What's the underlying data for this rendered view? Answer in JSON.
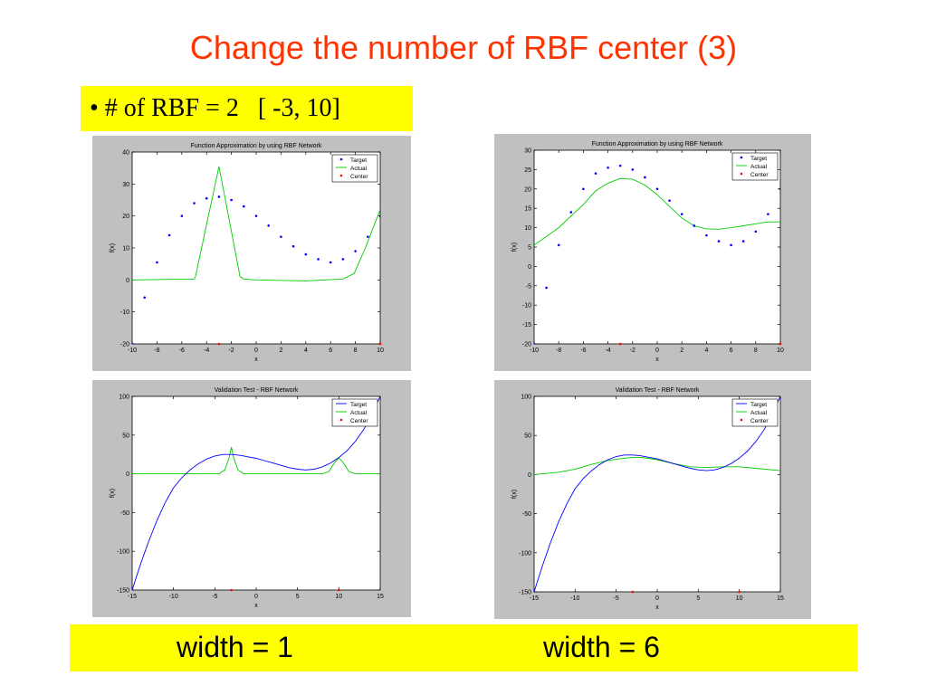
{
  "slide": {
    "title": "Change the number of RBF center (3)",
    "bullet": "• # of RBF = 2   [ -3, 10]",
    "width_left": "width = 1",
    "width_right": "width = 6"
  },
  "colors": {
    "target": "#0000ff",
    "actual": "#00cc00",
    "center": "#ff0000",
    "title": "#ff3300",
    "highlight": "#ffff00"
  },
  "chart_data": [
    {
      "type": "scatter",
      "title": "Function Approximation by using RBF Network",
      "xlabel": "x",
      "ylabel": "f(x)",
      "xlim": [
        -10,
        10
      ],
      "ylim": [
        -20,
        40
      ],
      "xticks": [
        -10,
        -8,
        -6,
        -4,
        -2,
        0,
        2,
        4,
        6,
        8,
        10
      ],
      "yticks": [
        -20,
        -10,
        0,
        10,
        20,
        30,
        40
      ],
      "legend_position": "top-right",
      "legend": [
        "Target",
        "Actual",
        "Center"
      ],
      "target_style": "dots",
      "actual_style": "line",
      "target": {
        "x": [
          -10,
          -9,
          -8,
          -7,
          -6,
          -5,
          -4,
          -3,
          -2,
          -1,
          0,
          1,
          2,
          3,
          4,
          5,
          6,
          7,
          8,
          9,
          10
        ],
        "y": [
          -20,
          -5.5,
          5.5,
          14,
          20,
          24,
          25.5,
          26,
          25,
          23,
          20,
          17,
          13.5,
          10.5,
          8,
          6.5,
          5.5,
          6.5,
          9,
          13.5,
          20
        ]
      },
      "actual": {
        "x": [
          -10,
          -5,
          -4.9,
          -3,
          -1.3,
          -1,
          0,
          4,
          7,
          7.9,
          8.8,
          10
        ],
        "y": [
          0,
          0.3,
          1,
          35.5,
          1,
          0.3,
          0,
          -0.3,
          0.3,
          2,
          10,
          22
        ]
      },
      "centers": {
        "x": [
          -3,
          10
        ],
        "y": [
          -20,
          -20
        ]
      }
    },
    {
      "type": "scatter",
      "title": "Function Approximation by using RBF Network",
      "xlabel": "x",
      "ylabel": "f(x)",
      "xlim": [
        -10,
        10
      ],
      "ylim": [
        -20,
        30
      ],
      "xticks": [
        -10,
        -8,
        -6,
        -4,
        -2,
        0,
        2,
        4,
        6,
        8,
        10
      ],
      "yticks": [
        -20,
        -15,
        -10,
        -5,
        0,
        5,
        10,
        15,
        20,
        25,
        30
      ],
      "legend_position": "top-right",
      "legend": [
        "Target",
        "Actual",
        "Center"
      ],
      "target_style": "dots",
      "actual_style": "line",
      "target": {
        "x": [
          -10,
          -9,
          -8,
          -7,
          -6,
          -5,
          -4,
          -3,
          -2,
          -1,
          0,
          1,
          2,
          3,
          4,
          5,
          6,
          7,
          8,
          9,
          10
        ],
        "y": [
          -20,
          -5.5,
          5.5,
          14,
          20,
          24,
          25.5,
          26,
          25,
          23,
          20,
          17,
          13.5,
          10.5,
          8,
          6.5,
          5.5,
          6.5,
          9,
          13.5,
          20
        ]
      },
      "actual": {
        "x": [
          -10,
          -8,
          -6,
          -5,
          -4,
          -3,
          -2,
          -1,
          0,
          1,
          2,
          3,
          4,
          5,
          6,
          7,
          8,
          9,
          10
        ],
        "y": [
          5.5,
          10,
          16,
          19.5,
          21.5,
          22.7,
          22.5,
          21,
          18.5,
          15.5,
          12.5,
          10.5,
          9.7,
          9.6,
          10,
          10.5,
          11,
          11.5,
          11.5
        ]
      },
      "centers": {
        "x": [
          -3,
          10
        ],
        "y": [
          -20,
          -20
        ]
      }
    },
    {
      "type": "line",
      "title": "Validation Test - RBF Network",
      "xlabel": "x",
      "ylabel": "f(x)",
      "xlim": [
        -15,
        15
      ],
      "ylim": [
        -150,
        100
      ],
      "xticks": [
        -15,
        -10,
        -5,
        0,
        5,
        10,
        15
      ],
      "yticks": [
        -150,
        -100,
        -50,
        0,
        50,
        100
      ],
      "legend_position": "top-right",
      "legend": [
        "Target",
        "Actual",
        "Center"
      ],
      "target_style": "line",
      "actual_style": "line",
      "target": {
        "x": [
          -15,
          -14,
          -13,
          -12,
          -11,
          -10,
          -9,
          -8,
          -7,
          -6,
          -5,
          -4,
          -3,
          -2,
          -1,
          0,
          1,
          2,
          3,
          4,
          5,
          6,
          7,
          8,
          9,
          10,
          11,
          12,
          13,
          14,
          15
        ],
        "y": [
          -150,
          -117,
          -87,
          -60,
          -37,
          -18,
          -5,
          5,
          13,
          19,
          23,
          25,
          25,
          24,
          22,
          20,
          17,
          14,
          11,
          8,
          6,
          5,
          6,
          9,
          14,
          21,
          30,
          42,
          57,
          77,
          100
        ]
      },
      "actual": {
        "x": [
          -15,
          -4.5,
          -3.8,
          -3.3,
          -3,
          -2.7,
          -2.2,
          -1.5,
          8,
          8.8,
          9.5,
          10,
          10.5,
          11.2,
          12,
          15
        ],
        "y": [
          0,
          0,
          5,
          20,
          34.5,
          20,
          5,
          0,
          0,
          3,
          15,
          20.5,
          15,
          3,
          0,
          0
        ]
      },
      "centers": {
        "x": [
          -3,
          10
        ],
        "y": [
          -150,
          -150
        ]
      }
    },
    {
      "type": "line",
      "title": "Validation Test - RBF Network",
      "xlabel": "x",
      "ylabel": "f(x)",
      "xlim": [
        -15,
        15
      ],
      "ylim": [
        -150,
        100
      ],
      "xticks": [
        -15,
        -10,
        -5,
        0,
        5,
        10,
        15
      ],
      "yticks": [
        -150,
        -100,
        -50,
        0,
        50,
        100
      ],
      "legend_position": "top-right",
      "legend": [
        "Target",
        "Actual",
        "Center"
      ],
      "target_style": "line",
      "actual_style": "line",
      "target": {
        "x": [
          -15,
          -14,
          -13,
          -12,
          -11,
          -10,
          -9,
          -8,
          -7,
          -6,
          -5,
          -4,
          -3,
          -2,
          -1,
          0,
          1,
          2,
          3,
          4,
          5,
          6,
          7,
          8,
          9,
          10,
          11,
          12,
          13,
          14,
          15
        ],
        "y": [
          -150,
          -117,
          -87,
          -60,
          -37,
          -18,
          -5,
          5,
          13,
          19,
          23,
          25,
          25,
          24,
          22,
          20,
          17,
          14,
          11,
          8,
          6,
          5,
          6,
          9,
          14,
          21,
          30,
          42,
          57,
          77,
          100
        ]
      },
      "actual": {
        "x": [
          -15,
          -12,
          -10,
          -8,
          -6,
          -4,
          -3,
          -2,
          0,
          2,
          4,
          6,
          8,
          10,
          12,
          15
        ],
        "y": [
          0,
          3,
          7,
          13,
          18,
          21,
          22,
          22,
          19,
          14,
          10,
          9,
          10,
          10,
          8,
          5
        ]
      },
      "centers": {
        "x": [
          -3,
          10
        ],
        "y": [
          -150,
          -150
        ]
      }
    }
  ]
}
